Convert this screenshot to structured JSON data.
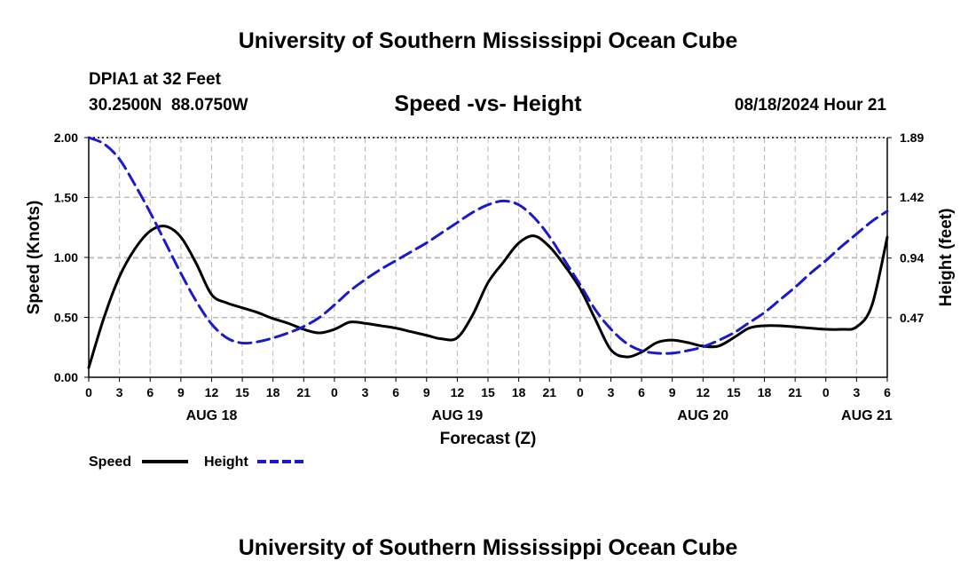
{
  "header": {
    "title": "University of Southern Mississippi Ocean Cube",
    "station": "DPIA1 at 32 Feet",
    "coords": "30.2500N  88.0750W",
    "date": "08/18/2024 Hour 21",
    "footer_title": "University of Southern Mississippi Ocean Cube"
  },
  "colors": {
    "speed": "#000000",
    "height": "#1a1acc",
    "grid": "#b8b8b8"
  },
  "chart_data": {
    "type": "line",
    "title": "Speed -vs- Height",
    "xlabel": "Forecast (Z)",
    "ylabel": "Speed (Knots)",
    "y2label": "Height (feet)",
    "x_unit": "hours since AUG 18 00Z",
    "xlim": [
      0,
      78
    ],
    "ylim": [
      0,
      2.0
    ],
    "y2lim": [
      0,
      1.89
    ],
    "x_ticks": [
      0,
      3,
      6,
      9,
      12,
      15,
      18,
      21,
      24,
      27,
      30,
      33,
      36,
      39,
      42,
      45,
      48,
      51,
      54,
      57,
      60,
      63,
      66,
      69,
      72,
      75,
      78
    ],
    "x_tick_labels": [
      "0",
      "3",
      "6",
      "9",
      "12",
      "15",
      "18",
      "21",
      "0",
      "3",
      "6",
      "9",
      "12",
      "15",
      "18",
      "21",
      "0",
      "3",
      "6",
      "9",
      "12",
      "15",
      "18",
      "21",
      "0",
      "3",
      "6"
    ],
    "date_labels": [
      {
        "x": 12,
        "label": "AUG 18"
      },
      {
        "x": 36,
        "label": "AUG 19"
      },
      {
        "x": 60,
        "label": "AUG 20"
      },
      {
        "x": 76,
        "label": "AUG 21"
      }
    ],
    "y_ticks": [
      0.0,
      0.5,
      1.0,
      1.5,
      2.0
    ],
    "y_tick_labels": [
      "0.00",
      "0.50",
      "1.00",
      "1.50",
      "2.00"
    ],
    "y2_ticks": [
      0.47,
      0.94,
      1.42,
      1.89
    ],
    "y2_tick_labels": [
      "0.47",
      "0.94",
      "1.42",
      "1.89"
    ],
    "series": [
      {
        "name": "Speed",
        "axis": "left",
        "style": "solid",
        "x": [
          0,
          1.5,
          3,
          4.5,
          6,
          7.5,
          9,
          10.5,
          12,
          13.5,
          15,
          16.5,
          18,
          19.5,
          21,
          22.5,
          24,
          25.5,
          27,
          28.5,
          30,
          31.5,
          33,
          34.5,
          36,
          37.5,
          39,
          40.5,
          42,
          43.5,
          45,
          46.5,
          48,
          49.5,
          51,
          52.5,
          54,
          55.5,
          57,
          58.5,
          60,
          61.5,
          63,
          64.5,
          66,
          67.5,
          69,
          70.5,
          72,
          73.5,
          75,
          76.5,
          78
        ],
        "values": [
          0.08,
          0.5,
          0.84,
          1.07,
          1.22,
          1.26,
          1.17,
          0.95,
          0.69,
          0.62,
          0.58,
          0.54,
          0.49,
          0.45,
          0.4,
          0.37,
          0.4,
          0.46,
          0.45,
          0.43,
          0.41,
          0.38,
          0.35,
          0.32,
          0.33,
          0.52,
          0.79,
          0.96,
          1.12,
          1.18,
          1.09,
          0.93,
          0.74,
          0.48,
          0.23,
          0.17,
          0.21,
          0.29,
          0.31,
          0.29,
          0.26,
          0.26,
          0.33,
          0.41,
          0.43,
          0.43,
          0.42,
          0.41,
          0.4,
          0.4,
          0.42,
          0.6,
          1.17
        ]
      },
      {
        "name": "Height",
        "axis": "right",
        "style": "dashed",
        "x": [
          0,
          1.5,
          3,
          4.5,
          6,
          7.5,
          9,
          10.5,
          12,
          13.5,
          15,
          16.5,
          18,
          19.5,
          21,
          22.5,
          24,
          25.5,
          27,
          28.5,
          30,
          31.5,
          33,
          34.5,
          36,
          37.5,
          39,
          40.5,
          42,
          43.5,
          45,
          46.5,
          48,
          49.5,
          51,
          52.5,
          54,
          55.5,
          57,
          58.5,
          60,
          61.5,
          63,
          64.5,
          66,
          67.5,
          69,
          70.5,
          72,
          73.5,
          75,
          76.5,
          78
        ],
        "values": [
          1.89,
          1.84,
          1.72,
          1.52,
          1.3,
          1.06,
          0.82,
          0.6,
          0.42,
          0.31,
          0.27,
          0.28,
          0.31,
          0.35,
          0.4,
          0.47,
          0.57,
          0.68,
          0.77,
          0.85,
          0.92,
          0.99,
          1.06,
          1.14,
          1.22,
          1.3,
          1.36,
          1.39,
          1.36,
          1.26,
          1.11,
          0.92,
          0.73,
          0.53,
          0.38,
          0.27,
          0.21,
          0.19,
          0.19,
          0.21,
          0.24,
          0.29,
          0.35,
          0.43,
          0.51,
          0.61,
          0.71,
          0.82,
          0.92,
          1.03,
          1.13,
          1.23,
          1.31
        ]
      }
    ],
    "legend": [
      {
        "label": "Speed",
        "series": "Speed"
      },
      {
        "label": "Height",
        "series": "Height"
      }
    ],
    "legend_position": "bottom-left"
  }
}
